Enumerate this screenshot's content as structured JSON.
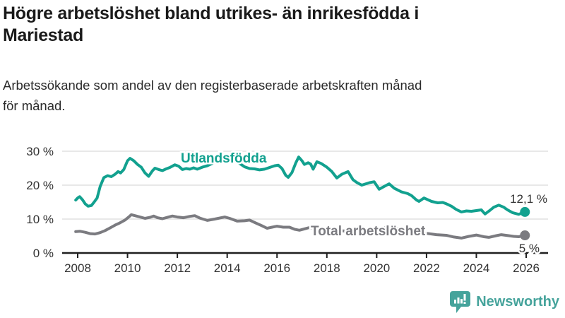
{
  "header": {
    "title_lines": [
      "Högre arbetslöshet bland utrikes- än inrikesfödda i",
      "Mariestad"
    ],
    "subtitle_lines": [
      "Arbetssökande som andel av den registerbaserade arbetskraften månad",
      "för månad."
    ]
  },
  "chart_data": {
    "type": "line",
    "title": "Högre arbetslöshet bland utrikes- än inrikesfödda i Mariestad",
    "subtitle": "Arbetssökande som andel av den registerbaserade arbetskraften månad för månad.",
    "xlabel": "",
    "ylabel": "",
    "ylim": [
      0,
      30
    ],
    "xlim": [
      2007.8,
      2026.4
    ],
    "grid": "horizontal",
    "legend_position": "inline-labels",
    "yticks": [
      {
        "value": 0,
        "label": "0 %"
      },
      {
        "value": 10,
        "label": "10 %"
      },
      {
        "value": 20,
        "label": "20 %"
      },
      {
        "value": 30,
        "label": "30 %"
      }
    ],
    "xticks": [
      {
        "value": 2008,
        "label": "2008"
      },
      {
        "value": 2010,
        "label": "2010"
      },
      {
        "value": 2012,
        "label": "2012"
      },
      {
        "value": 2014,
        "label": "2014"
      },
      {
        "value": 2016,
        "label": "2016"
      },
      {
        "value": 2018,
        "label": "2018"
      },
      {
        "value": 2020,
        "label": "2020"
      },
      {
        "value": 2022,
        "label": "2022"
      },
      {
        "value": 2024,
        "label": "2024"
      },
      {
        "value": 2026,
        "label": "2026"
      }
    ],
    "series": [
      {
        "name": "Utlandsfödda",
        "color": "#12a18f",
        "end_label": "12,1 %",
        "end_dot": true,
        "points": [
          [
            2007.92,
            15.6
          ],
          [
            2008.0,
            16.2
          ],
          [
            2008.08,
            16.6
          ],
          [
            2008.2,
            15.6
          ],
          [
            2008.3,
            14.5
          ],
          [
            2008.42,
            13.8
          ],
          [
            2008.55,
            14.0
          ],
          [
            2008.65,
            14.9
          ],
          [
            2008.78,
            16.2
          ],
          [
            2008.9,
            19.6
          ],
          [
            2009.05,
            22.2
          ],
          [
            2009.2,
            22.8
          ],
          [
            2009.35,
            22.5
          ],
          [
            2009.5,
            23.2
          ],
          [
            2009.62,
            24.0
          ],
          [
            2009.72,
            23.6
          ],
          [
            2009.85,
            24.6
          ],
          [
            2010.0,
            27.2
          ],
          [
            2010.1,
            27.9
          ],
          [
            2010.25,
            27.2
          ],
          [
            2010.4,
            26.1
          ],
          [
            2010.55,
            25.3
          ],
          [
            2010.7,
            23.6
          ],
          [
            2010.85,
            22.6
          ],
          [
            2011.0,
            24.2
          ],
          [
            2011.1,
            25.0
          ],
          [
            2011.25,
            24.6
          ],
          [
            2011.4,
            24.3
          ],
          [
            2011.55,
            24.8
          ],
          [
            2011.7,
            25.2
          ],
          [
            2011.9,
            26.0
          ],
          [
            2012.05,
            25.6
          ],
          [
            2012.2,
            24.6
          ],
          [
            2012.35,
            24.9
          ],
          [
            2012.5,
            24.7
          ],
          [
            2012.65,
            25.1
          ],
          [
            2012.8,
            24.7
          ],
          [
            2013.0,
            25.3
          ],
          [
            2013.2,
            25.7
          ],
          [
            2013.4,
            26.4
          ],
          [
            2013.6,
            27.2
          ],
          [
            2013.8,
            28.0
          ],
          [
            2013.95,
            28.6
          ],
          [
            2014.1,
            28.2
          ],
          [
            2014.3,
            27.3
          ],
          [
            2014.5,
            26.4
          ],
          [
            2014.7,
            25.4
          ],
          [
            2014.9,
            24.9
          ],
          [
            2015.1,
            24.8
          ],
          [
            2015.3,
            24.5
          ],
          [
            2015.5,
            24.7
          ],
          [
            2015.7,
            25.2
          ],
          [
            2015.9,
            25.7
          ],
          [
            2016.05,
            25.9
          ],
          [
            2016.2,
            24.9
          ],
          [
            2016.35,
            22.9
          ],
          [
            2016.45,
            22.3
          ],
          [
            2016.6,
            23.7
          ],
          [
            2016.75,
            26.5
          ],
          [
            2016.87,
            28.3
          ],
          [
            2017.0,
            27.2
          ],
          [
            2017.1,
            26.1
          ],
          [
            2017.25,
            26.6
          ],
          [
            2017.35,
            26.2
          ],
          [
            2017.45,
            24.7
          ],
          [
            2017.6,
            26.9
          ],
          [
            2017.77,
            26.4
          ],
          [
            2018.0,
            25.3
          ],
          [
            2018.2,
            24.0
          ],
          [
            2018.4,
            22.1
          ],
          [
            2018.6,
            23.2
          ],
          [
            2018.85,
            24.0
          ],
          [
            2019.05,
            21.6
          ],
          [
            2019.2,
            20.8
          ],
          [
            2019.4,
            20.0
          ],
          [
            2019.7,
            20.7
          ],
          [
            2019.9,
            21.0
          ],
          [
            2020.1,
            18.8
          ],
          [
            2020.3,
            19.6
          ],
          [
            2020.5,
            20.4
          ],
          [
            2020.7,
            19.1
          ],
          [
            2021.0,
            18.0
          ],
          [
            2021.25,
            17.5
          ],
          [
            2021.4,
            16.9
          ],
          [
            2021.6,
            15.6
          ],
          [
            2021.7,
            15.2
          ],
          [
            2021.9,
            16.2
          ],
          [
            2022.2,
            15.2
          ],
          [
            2022.45,
            14.8
          ],
          [
            2022.65,
            14.9
          ],
          [
            2022.8,
            14.5
          ],
          [
            2023.0,
            13.8
          ],
          [
            2023.2,
            12.8
          ],
          [
            2023.4,
            12.1
          ],
          [
            2023.6,
            12.4
          ],
          [
            2023.8,
            12.3
          ],
          [
            2024.0,
            12.5
          ],
          [
            2024.2,
            12.7
          ],
          [
            2024.35,
            11.5
          ],
          [
            2024.55,
            12.6
          ],
          [
            2024.7,
            13.5
          ],
          [
            2024.9,
            14.1
          ],
          [
            2025.1,
            13.5
          ],
          [
            2025.25,
            12.7
          ],
          [
            2025.45,
            11.9
          ],
          [
            2025.7,
            11.4
          ],
          [
            2025.95,
            12.1
          ]
        ]
      },
      {
        "name": "Total arbetslöshet",
        "color": "#7b7b80",
        "end_label": "5 %",
        "end_dot": true,
        "points": [
          [
            2007.92,
            6.3
          ],
          [
            2008.1,
            6.4
          ],
          [
            2008.3,
            6.1
          ],
          [
            2008.5,
            5.7
          ],
          [
            2008.7,
            5.6
          ],
          [
            2008.9,
            6.0
          ],
          [
            2009.1,
            6.6
          ],
          [
            2009.3,
            7.4
          ],
          [
            2009.5,
            8.2
          ],
          [
            2009.7,
            8.9
          ],
          [
            2009.9,
            9.7
          ],
          [
            2010.05,
            10.6
          ],
          [
            2010.15,
            11.3
          ],
          [
            2010.3,
            11.0
          ],
          [
            2010.5,
            10.6
          ],
          [
            2010.7,
            10.2
          ],
          [
            2010.9,
            10.5
          ],
          [
            2011.05,
            10.9
          ],
          [
            2011.2,
            10.4
          ],
          [
            2011.4,
            10.1
          ],
          [
            2011.6,
            10.5
          ],
          [
            2011.8,
            10.9
          ],
          [
            2012.0,
            10.6
          ],
          [
            2012.25,
            10.4
          ],
          [
            2012.5,
            10.8
          ],
          [
            2012.7,
            11.0
          ],
          [
            2012.9,
            10.3
          ],
          [
            2013.2,
            9.6
          ],
          [
            2013.5,
            10.0
          ],
          [
            2013.9,
            10.6
          ],
          [
            2014.1,
            10.2
          ],
          [
            2014.4,
            9.4
          ],
          [
            2014.7,
            9.5
          ],
          [
            2014.9,
            9.7
          ],
          [
            2015.1,
            9.0
          ],
          [
            2015.4,
            8.0
          ],
          [
            2015.6,
            7.3
          ],
          [
            2015.8,
            7.6
          ],
          [
            2016.0,
            7.9
          ],
          [
            2016.25,
            7.6
          ],
          [
            2016.5,
            7.6
          ],
          [
            2016.7,
            7.0
          ],
          [
            2016.9,
            6.7
          ],
          [
            2017.1,
            7.1
          ],
          [
            2017.3,
            7.5
          ],
          [
            2017.6,
            7.3
          ],
          [
            2018.0,
            7.0
          ],
          [
            2018.5,
            6.6
          ],
          [
            2019.0,
            6.3
          ],
          [
            2019.5,
            6.2
          ],
          [
            2020.0,
            6.8
          ],
          [
            2020.4,
            7.6
          ],
          [
            2020.7,
            7.4
          ],
          [
            2021.0,
            7.0
          ],
          [
            2021.5,
            6.4
          ],
          [
            2022.0,
            5.8
          ],
          [
            2022.4,
            5.4
          ],
          [
            2022.8,
            5.2
          ],
          [
            2023.1,
            4.7
          ],
          [
            2023.4,
            4.4
          ],
          [
            2023.7,
            4.9
          ],
          [
            2024.0,
            5.3
          ],
          [
            2024.3,
            4.8
          ],
          [
            2024.5,
            4.6
          ],
          [
            2024.8,
            5.1
          ],
          [
            2025.0,
            5.4
          ],
          [
            2025.3,
            5.1
          ],
          [
            2025.5,
            4.9
          ],
          [
            2025.7,
            4.8
          ],
          [
            2025.95,
            5.2
          ]
        ]
      }
    ],
    "colors": {
      "grid": "#d9d9d9",
      "axis": "#1f1f1f",
      "tick_text": "#333333",
      "end_label_text": "#333333"
    }
  },
  "footer": {
    "brand": "Newsworthy",
    "logo_icon": "bar-chart-speech-bubble-icon",
    "brand_color": "#45a39b"
  }
}
